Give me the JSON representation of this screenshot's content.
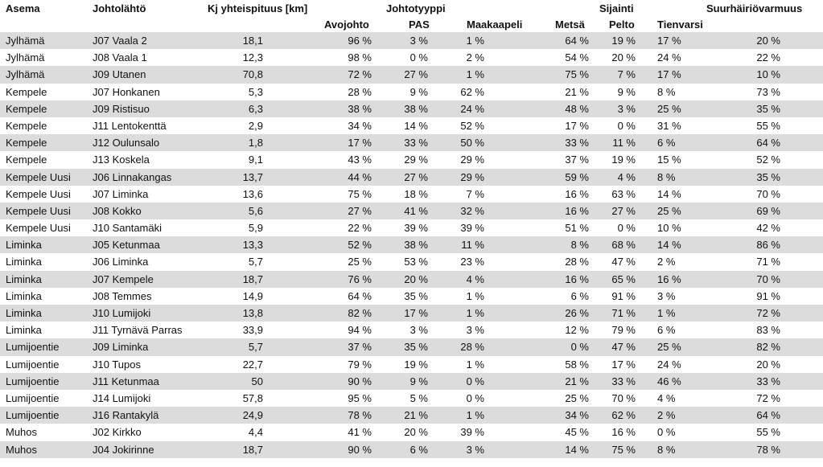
{
  "headers": {
    "asema": "Asema",
    "johtolahto": "Johtolähtö",
    "kj_pituus": "Kj yhteispituus [km]",
    "johtotyyppi": "Johtotyyppi",
    "sijainti": "Sijainti",
    "suurhairio": "Suurhäiriövarmuus",
    "avojohto": "Avojohto",
    "pas": "PAS",
    "maakaapeli": "Maakaapeli",
    "metsa": "Metsä",
    "pelto": "Pelto",
    "tienvarsi": "Tienvarsi"
  },
  "rows": [
    [
      "Jylhämä",
      "J07 Vaala 2",
      "18,1",
      "96 %",
      "3 %",
      "1 %",
      "64 %",
      "19 %",
      "17 %",
      "20 %"
    ],
    [
      "Jylhämä",
      "J08 Vaala 1",
      "12,3",
      "98 %",
      "0 %",
      "2 %",
      "54 %",
      "20 %",
      "24 %",
      "22 %"
    ],
    [
      "Jylhämä",
      "J09 Utanen",
      "70,8",
      "72 %",
      "27 %",
      "1 %",
      "75 %",
      "7 %",
      "17 %",
      "10 %"
    ],
    [
      "Kempele",
      "J07 Honkanen",
      "5,3",
      "28 %",
      "9 %",
      "62 %",
      "21 %",
      "9 %",
      "8 %",
      "73 %"
    ],
    [
      "Kempele",
      "J09 Ristisuo",
      "6,3",
      "38 %",
      "38 %",
      "24 %",
      "48 %",
      "3 %",
      "25 %",
      "35 %"
    ],
    [
      "Kempele",
      "J11 Lentokenttä",
      "2,9",
      "34 %",
      "14 %",
      "52 %",
      "17 %",
      "0 %",
      "31 %",
      "55 %"
    ],
    [
      "Kempele",
      "J12 Oulunsalo",
      "1,8",
      "17 %",
      "33 %",
      "50 %",
      "33 %",
      "11 %",
      "6 %",
      "64 %"
    ],
    [
      "Kempele",
      "J13 Koskela",
      "9,1",
      "43 %",
      "29 %",
      "29 %",
      "37 %",
      "19 %",
      "15 %",
      "52 %"
    ],
    [
      "Kempele Uusi",
      "J06 Linnakangas",
      "13,7",
      "44 %",
      "27 %",
      "29 %",
      "59 %",
      "4 %",
      "8 %",
      "35 %"
    ],
    [
      "Kempele Uusi",
      "J07 Liminka",
      "13,6",
      "75 %",
      "18 %",
      "7 %",
      "16 %",
      "63 %",
      "14 %",
      "70 %"
    ],
    [
      "Kempele Uusi",
      "J08 Kokko",
      "5,6",
      "27 %",
      "41 %",
      "32 %",
      "16 %",
      "27 %",
      "25 %",
      "69 %"
    ],
    [
      "Kempele Uusi",
      "J10 Santamäki",
      "5,9",
      "22 %",
      "39 %",
      "39 %",
      "51 %",
      "0 %",
      "10 %",
      "42 %"
    ],
    [
      "Liminka",
      "J05 Ketunmaa",
      "13,3",
      "52 %",
      "38 %",
      "11 %",
      "8 %",
      "68 %",
      "14 %",
      "86 %"
    ],
    [
      "Liminka",
      "J06 Liminka",
      "5,7",
      "25 %",
      "53 %",
      "23 %",
      "28 %",
      "47 %",
      "2 %",
      "71 %"
    ],
    [
      "Liminka",
      "J07 Kempele",
      "18,7",
      "76 %",
      "20 %",
      "4 %",
      "16 %",
      "65 %",
      "16 %",
      "70 %"
    ],
    [
      "Liminka",
      "J08 Temmes",
      "14,9",
      "64 %",
      "35 %",
      "1 %",
      "6 %",
      "91 %",
      "3 %",
      "91 %"
    ],
    [
      "Liminka",
      "J10 Lumijoki",
      "13,8",
      "82 %",
      "17 %",
      "1 %",
      "26 %",
      "71 %",
      "1 %",
      "72 %"
    ],
    [
      "Liminka",
      "J11 Tyrnävä Parras",
      "33,9",
      "94 %",
      "3 %",
      "3 %",
      "12 %",
      "79 %",
      "6 %",
      "83 %"
    ],
    [
      "Lumijoentie",
      "J09 Liminka",
      "5,7",
      "37 %",
      "35 %",
      "28 %",
      "0 %",
      "47 %",
      "25 %",
      "82 %"
    ],
    [
      "Lumijoentie",
      "J10 Tupos",
      "22,7",
      "79 %",
      "19 %",
      "1 %",
      "58 %",
      "17 %",
      "24 %",
      "20 %"
    ],
    [
      "Lumijoentie",
      "J11 Ketunmaa",
      "50",
      "90 %",
      "9 %",
      "0 %",
      "21 %",
      "33 %",
      "46 %",
      "33 %"
    ],
    [
      "Lumijoentie",
      "J14 Lumijoki",
      "57,8",
      "95 %",
      "5 %",
      "0 %",
      "25 %",
      "70 %",
      "4 %",
      "72 %"
    ],
    [
      "Lumijoentie",
      "J16 Rantakylä",
      "24,9",
      "78 %",
      "21 %",
      "1 %",
      "34 %",
      "62 %",
      "2 %",
      "64 %"
    ],
    [
      "Muhos",
      "J02 Kirkko",
      "4,4",
      "41 %",
      "20 %",
      "39 %",
      "45 %",
      "16 %",
      "0 %",
      "55 %"
    ],
    [
      "Muhos",
      "J04 Jokirinne",
      "18,7",
      "90 %",
      "6 %",
      "3 %",
      "14 %",
      "75 %",
      "8 %",
      "78 %"
    ]
  ]
}
